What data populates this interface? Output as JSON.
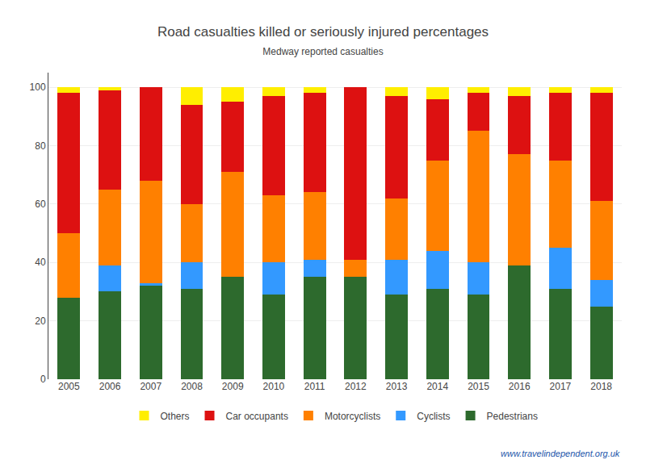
{
  "chart_data": {
    "type": "bar",
    "title": "Road casualties killed or seriously injured percentages",
    "subtitle": "Medway reported casualties",
    "categories": [
      "2005",
      "2006",
      "2007",
      "2008",
      "2009",
      "2010",
      "2011",
      "2012",
      "2013",
      "2014",
      "2015",
      "2016",
      "2017",
      "2018"
    ],
    "series": [
      {
        "name": "Pedestrians",
        "color": "#2d6a2d",
        "values": [
          28,
          30,
          32,
          31,
          35,
          29,
          35,
          35,
          29,
          31,
          29,
          39,
          31,
          25
        ]
      },
      {
        "name": "Cyclists",
        "color": "#3399ff",
        "values": [
          0,
          9,
          1,
          9,
          0,
          11,
          6,
          0,
          12,
          13,
          11,
          0,
          14,
          9
        ]
      },
      {
        "name": "Motorcyclists",
        "color": "#ff8000",
        "values": [
          22,
          26,
          35,
          20,
          36,
          23,
          23,
          6,
          21,
          31,
          45,
          38,
          30,
          27
        ]
      },
      {
        "name": "Car occupants",
        "color": "#dd1111",
        "values": [
          48,
          34,
          32,
          34,
          24,
          34,
          34,
          59,
          35,
          21,
          13,
          20,
          23,
          37
        ]
      },
      {
        "name": "Others",
        "color": "#ffee00",
        "values": [
          2,
          1,
          0,
          6,
          5,
          3,
          2,
          0,
          3,
          4,
          2,
          3,
          2,
          2
        ]
      }
    ],
    "ylim": [
      0,
      105
    ],
    "yticks": [
      0,
      20,
      40,
      60,
      80,
      100
    ],
    "stacked": true,
    "grid": true,
    "legend": "bottom",
    "annotations": [
      "www.travelindependent.org.uk"
    ]
  }
}
